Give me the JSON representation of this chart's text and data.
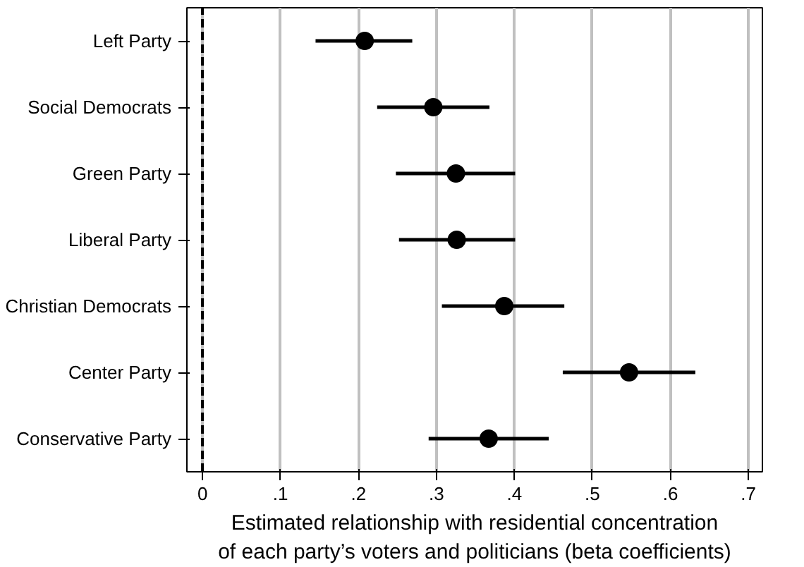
{
  "chart_data": {
    "type": "scatter",
    "orientation": "horizontal",
    "xlabel": "Estimated relationship with residential concentration\nof each party’s voters and politicians (beta coefficients)",
    "categories": [
      "Left Party",
      "Social Democrats",
      "Green Party",
      "Liberal Party",
      "Christian Democrats",
      "Center Party",
      "Conservative Party"
    ],
    "values": [
      0.208,
      0.296,
      0.325,
      0.326,
      0.387,
      0.547,
      0.367
    ],
    "errors": [
      [
        0.145,
        0.269
      ],
      [
        0.224,
        0.368
      ],
      [
        0.248,
        0.401
      ],
      [
        0.252,
        0.401
      ],
      [
        0.307,
        0.464
      ],
      [
        0.462,
        0.632
      ],
      [
        0.29,
        0.444
      ]
    ],
    "color": "#000000",
    "marker": "circle",
    "xlim": [
      -0.02,
      0.718
    ],
    "xticks": [
      0,
      {
        "value": 0.1,
        "label": ".1"
      },
      {
        "value": 0.2,
        "label": ".2"
      },
      {
        "value": 0.3,
        "label": ".3"
      },
      {
        "value": 0.4,
        "label": ".4"
      },
      {
        "value": 0.5,
        "label": ".5"
      },
      {
        "value": 0.6,
        "label": ".6"
      },
      {
        "value": 0.7,
        "label": ".7"
      }
    ],
    "grid": "x",
    "ref_lines": [
      {
        "axis": "x",
        "value": 0,
        "line_style": "dashed",
        "color": "#000000"
      }
    ]
  }
}
